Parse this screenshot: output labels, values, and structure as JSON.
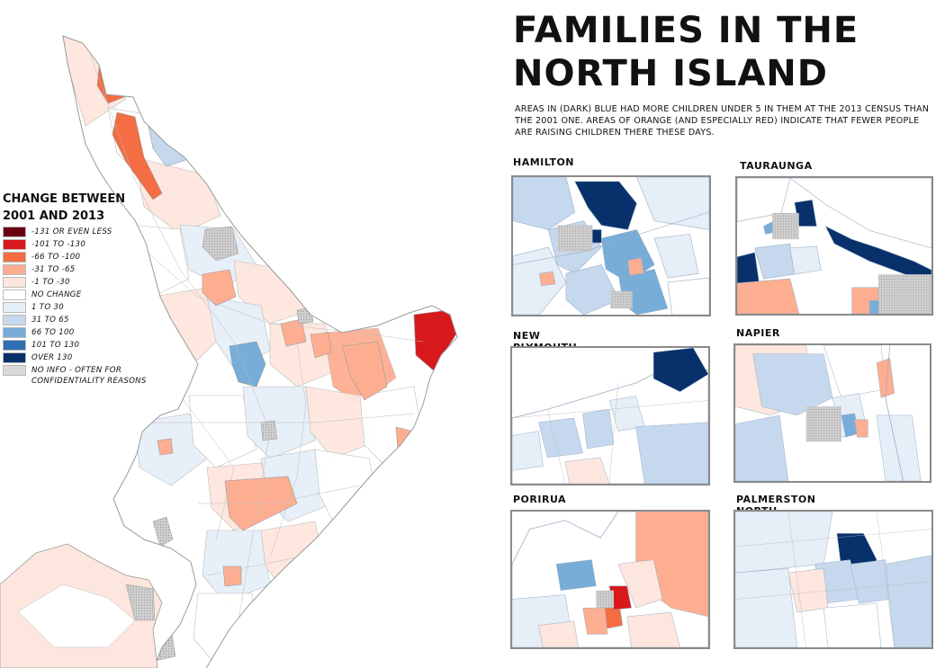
{
  "title_lines": [
    "FAMILIES IN THE",
    "NORTH ISLAND"
  ],
  "subtitle": "AREAS IN (DARK) BLUE HAD MORE CHILDREN UNDER 5 IN THEM AT THE 2013 CENSUS THAN THE 2001 ONE. AREAS OF ORANGE (AND ESPECIALLY RED) INDICATE THAT FEWER PEOPLE ARE RAISING CHILDREN THERE THESE DAYS.",
  "legend": {
    "title_lines": [
      "CHANGE BETWEEN",
      "2001 AND 2013"
    ],
    "items": [
      {
        "label": "-131 OR EVEN LESS",
        "color": "#6b0010"
      },
      {
        "label": "-101 TO -130",
        "color": "#d7191c"
      },
      {
        "label": "-66 TO -100",
        "color": "#f46d43"
      },
      {
        "label": "-31 TO -65",
        "color": "#fdae91"
      },
      {
        "label": "-1 TO -30",
        "color": "#fde6dd"
      },
      {
        "label": "NO CHANGE",
        "color": "#ffffff"
      },
      {
        "label": "1 TO 30",
        "color": "#e6eef8"
      },
      {
        "label": "31 TO 65",
        "color": "#c5d8ee"
      },
      {
        "label": "66 TO 100",
        "color": "#77add8"
      },
      {
        "label": "101 TO 130",
        "color": "#2f6fb3"
      },
      {
        "label": "OVER 130",
        "color": "#08306b"
      },
      {
        "label": "NO INFO - OFTEN FOR CONFIDENTIALITY REASONS",
        "color": "#d9d9d9"
      }
    ]
  },
  "insets": [
    {
      "id": "hamilton",
      "label": "HAMILTON"
    },
    {
      "id": "tauranga",
      "label": "TAURAUNGA"
    },
    {
      "id": "new-plymouth",
      "label": "NEW PLYMOUTH"
    },
    {
      "id": "napier",
      "label": "NAPIER"
    },
    {
      "id": "porirua",
      "label": "PORIRUA"
    },
    {
      "id": "palmerston-north",
      "label": "PALMERSTON NORTH"
    }
  ]
}
